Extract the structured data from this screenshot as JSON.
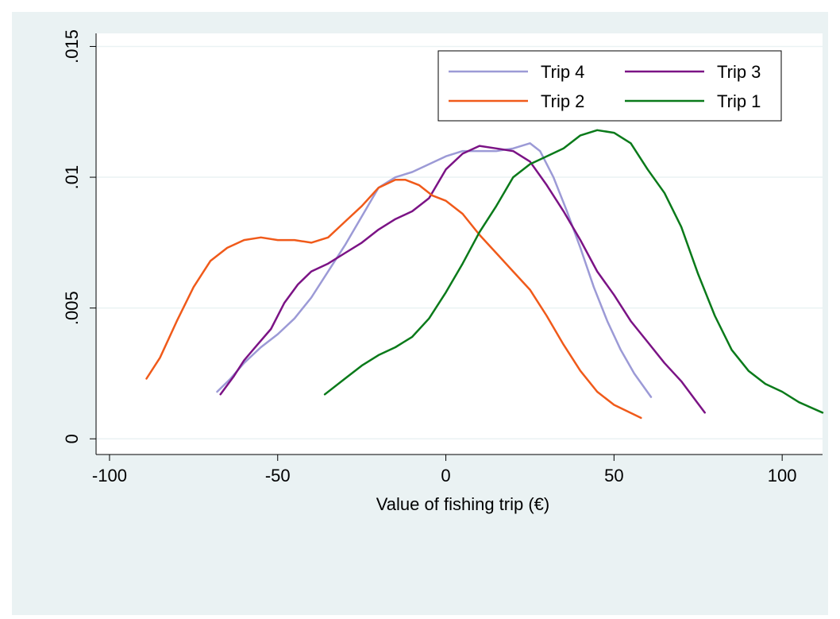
{
  "chart_data": {
    "type": "line",
    "title": "",
    "xlabel": "Value of fishing trip (€)",
    "ylabel": "",
    "xlim": [
      -104,
      112
    ],
    "ylim": [
      -0.0006,
      0.0155
    ],
    "x_ticks": [
      -100,
      -50,
      0,
      50,
      100
    ],
    "x_tick_labels": [
      "-100",
      "-50",
      "0",
      "50",
      "100"
    ],
    "y_ticks": [
      0,
      0.005,
      0.01,
      0.015
    ],
    "y_tick_labels": [
      "0",
      ".005",
      ".01",
      ".015"
    ],
    "grid": "horizontal",
    "legend_position": "top-right",
    "background_color": "#eaf2f3",
    "plot_background_color": "#ffffff",
    "series": [
      {
        "name": "Trip 4",
        "color": "#9c9ad6",
        "points": [
          [
            -68,
            0.0018
          ],
          [
            -64,
            0.0023
          ],
          [
            -60,
            0.0029
          ],
          [
            -55,
            0.0035
          ],
          [
            -50,
            0.004
          ],
          [
            -45,
            0.0046
          ],
          [
            -40,
            0.0054
          ],
          [
            -35,
            0.0064
          ],
          [
            -30,
            0.0074
          ],
          [
            -25,
            0.0085
          ],
          [
            -20,
            0.0096
          ],
          [
            -15,
            0.01
          ],
          [
            -10,
            0.0102
          ],
          [
            -5,
            0.0105
          ],
          [
            0,
            0.0108
          ],
          [
            5,
            0.011
          ],
          [
            10,
            0.011
          ],
          [
            15,
            0.011
          ],
          [
            20,
            0.0111
          ],
          [
            25,
            0.0113
          ],
          [
            28,
            0.011
          ],
          [
            32,
            0.01
          ],
          [
            36,
            0.0087
          ],
          [
            40,
            0.0073
          ],
          [
            44,
            0.0058
          ],
          [
            48,
            0.0045
          ],
          [
            52,
            0.0034
          ],
          [
            56,
            0.0025
          ],
          [
            61,
            0.0016
          ]
        ]
      },
      {
        "name": "Trip 3",
        "color": "#7b1385",
        "points": [
          [
            -67,
            0.0017
          ],
          [
            -63,
            0.0024
          ],
          [
            -60,
            0.003
          ],
          [
            -56,
            0.0036
          ],
          [
            -52,
            0.0042
          ],
          [
            -48,
            0.0052
          ],
          [
            -44,
            0.0059
          ],
          [
            -40,
            0.0064
          ],
          [
            -35,
            0.0067
          ],
          [
            -30,
            0.0071
          ],
          [
            -25,
            0.0075
          ],
          [
            -20,
            0.008
          ],
          [
            -15,
            0.0084
          ],
          [
            -10,
            0.0087
          ],
          [
            -5,
            0.0092
          ],
          [
            0,
            0.0103
          ],
          [
            5,
            0.0109
          ],
          [
            10,
            0.0112
          ],
          [
            15,
            0.0111
          ],
          [
            20,
            0.011
          ],
          [
            25,
            0.0106
          ],
          [
            30,
            0.0097
          ],
          [
            35,
            0.0087
          ],
          [
            40,
            0.0076
          ],
          [
            45,
            0.0064
          ],
          [
            50,
            0.0055
          ],
          [
            55,
            0.0045
          ],
          [
            60,
            0.0037
          ],
          [
            65,
            0.0029
          ],
          [
            70,
            0.0022
          ],
          [
            77,
            0.001
          ]
        ]
      },
      {
        "name": "Trip 2",
        "color": "#f05a1a",
        "points": [
          [
            -89,
            0.0023
          ],
          [
            -85,
            0.0031
          ],
          [
            -80,
            0.0045
          ],
          [
            -75,
            0.0058
          ],
          [
            -70,
            0.0068
          ],
          [
            -65,
            0.0073
          ],
          [
            -60,
            0.0076
          ],
          [
            -55,
            0.0077
          ],
          [
            -50,
            0.0076
          ],
          [
            -45,
            0.0076
          ],
          [
            -40,
            0.0075
          ],
          [
            -35,
            0.0077
          ],
          [
            -30,
            0.0083
          ],
          [
            -25,
            0.0089
          ],
          [
            -20,
            0.0096
          ],
          [
            -15,
            0.0099
          ],
          [
            -12,
            0.0099
          ],
          [
            -8,
            0.0097
          ],
          [
            -4,
            0.0093
          ],
          [
            0,
            0.0091
          ],
          [
            5,
            0.0086
          ],
          [
            10,
            0.0078
          ],
          [
            15,
            0.0071
          ],
          [
            20,
            0.0064
          ],
          [
            25,
            0.0057
          ],
          [
            30,
            0.0047
          ],
          [
            35,
            0.0036
          ],
          [
            40,
            0.0026
          ],
          [
            45,
            0.0018
          ],
          [
            50,
            0.0013
          ],
          [
            58,
            0.0008
          ]
        ]
      },
      {
        "name": "Trip 1",
        "color": "#0a7a1a",
        "points": [
          [
            -36,
            0.0017
          ],
          [
            -30,
            0.0023
          ],
          [
            -25,
            0.0028
          ],
          [
            -20,
            0.0032
          ],
          [
            -15,
            0.0035
          ],
          [
            -10,
            0.0039
          ],
          [
            -5,
            0.0046
          ],
          [
            0,
            0.0056
          ],
          [
            5,
            0.0067
          ],
          [
            10,
            0.0079
          ],
          [
            15,
            0.0089
          ],
          [
            20,
            0.01
          ],
          [
            25,
            0.0105
          ],
          [
            30,
            0.0108
          ],
          [
            35,
            0.0111
          ],
          [
            40,
            0.0116
          ],
          [
            45,
            0.0118
          ],
          [
            50,
            0.0117
          ],
          [
            55,
            0.0113
          ],
          [
            60,
            0.0103
          ],
          [
            65,
            0.0094
          ],
          [
            70,
            0.0081
          ],
          [
            75,
            0.0063
          ],
          [
            80,
            0.0047
          ],
          [
            85,
            0.0034
          ],
          [
            90,
            0.0026
          ],
          [
            95,
            0.0021
          ],
          [
            100,
            0.0018
          ],
          [
            105,
            0.0014
          ],
          [
            112,
            0.001
          ]
        ]
      }
    ]
  }
}
